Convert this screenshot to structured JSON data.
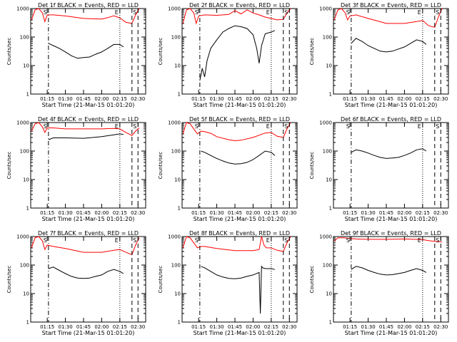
{
  "chart_data": [
    {
      "type": "line",
      "title": "Det 1f BLACK = Events, RED = LLD",
      "xlabel": "Start Time (21-Mar-15 01:01:20)",
      "ylabel": "Counts/sec",
      "yscale": "log",
      "ylim": [
        1,
        1000
      ],
      "x_ticks": [
        "01:15",
        "01:30",
        "01:45",
        "02:00",
        "02:15",
        "02:30"
      ],
      "y_ticks": [
        "1",
        "10",
        "100",
        "1000"
      ],
      "marker_labels": [
        "S",
        "E",
        "S"
      ],
      "series": [
        {
          "color": "#ff0000",
          "x": [
            "01:02",
            "01:05",
            "01:08",
            "01:11",
            "01:13",
            "01:15",
            "01:20",
            "01:30",
            "01:45",
            "02:00",
            "02:05",
            "02:10",
            "02:15",
            "02:20",
            "02:25",
            "02:28",
            "02:31"
          ],
          "values": [
            400,
            900,
            1000,
            700,
            350,
            600,
            600,
            550,
            450,
            430,
            480,
            560,
            470,
            330,
            300,
            600,
            1000
          ]
        },
        {
          "color": "#000000",
          "x": [
            "01:16",
            "01:20",
            "01:25",
            "01:30",
            "01:35",
            "01:40",
            "01:45",
            "01:50",
            "01:55",
            "02:00",
            "02:05",
            "02:10",
            "02:15",
            "02:18"
          ],
          "values": [
            60,
            50,
            40,
            30,
            22,
            18,
            19,
            20,
            25,
            30,
            40,
            55,
            55,
            45
          ]
        }
      ]
    },
    {
      "type": "line",
      "title": "Det 2f BLACK = Events, RED = LLD",
      "xlabel": "Start Time (21-Mar-15 01:01:20)",
      "ylabel": "Counts/sec",
      "yscale": "log",
      "ylim": [
        1,
        1000
      ],
      "x_ticks": [
        "01:15",
        "01:30",
        "01:45",
        "02:00",
        "02:15",
        "02:30"
      ],
      "y_ticks": [
        "1",
        "10",
        "100",
        "1000"
      ],
      "marker_labels": [
        "S",
        "E",
        "S"
      ],
      "series": [
        {
          "color": "#ff0000",
          "x": [
            "01:02",
            "01:05",
            "01:08",
            "01:11",
            "01:13",
            "01:15",
            "01:20",
            "01:30",
            "01:40",
            "01:45",
            "01:50",
            "01:55",
            "02:00",
            "02:05",
            "02:10",
            "02:15",
            "02:20",
            "02:25",
            "02:28",
            "02:31"
          ],
          "values": [
            300,
            900,
            1000,
            700,
            300,
            550,
            600,
            580,
            620,
            850,
            650,
            900,
            700,
            600,
            500,
            450,
            400,
            420,
            700,
            1000
          ]
        },
        {
          "color": "#000000",
          "x": [
            "01:16",
            "01:18",
            "01:20",
            "01:22",
            "01:25",
            "01:30",
            "01:35",
            "01:40",
            "01:45",
            "01:50",
            "01:55",
            "02:00",
            "02:03",
            "02:05",
            "02:07",
            "02:10",
            "02:15",
            "02:18"
          ],
          "values": [
            3,
            8,
            4,
            15,
            40,
            80,
            150,
            200,
            250,
            230,
            200,
            120,
            40,
            12,
            50,
            130,
            150,
            170
          ]
        }
      ]
    },
    {
      "type": "line",
      "title": "Det 3f BLACK = Events, RED = LLD",
      "xlabel": "Start Time (21-Mar-15 01:01:20)",
      "ylabel": "Counts/sec",
      "yscale": "log",
      "ylim": [
        1,
        1000
      ],
      "x_ticks": [
        "01:15",
        "01:30",
        "01:45",
        "02:00",
        "02:15",
        "02:30"
      ],
      "y_ticks": [
        "1",
        "10",
        "100",
        "1000"
      ],
      "marker_labels": [
        "S",
        "E",
        "S"
      ],
      "series": [
        {
          "color": "#ff0000",
          "x": [
            "01:02",
            "01:05",
            "01:08",
            "01:11",
            "01:13",
            "01:15",
            "01:20",
            "01:30",
            "01:45",
            "02:00",
            "02:10",
            "02:15",
            "02:20",
            "02:25",
            "02:28",
            "02:31"
          ],
          "values": [
            400,
            900,
            1000,
            700,
            400,
            550,
            600,
            450,
            300,
            300,
            350,
            380,
            250,
            220,
            500,
            1000
          ]
        },
        {
          "color": "#000000",
          "x": [
            "01:16",
            "01:20",
            "01:25",
            "01:30",
            "01:35",
            "01:40",
            "01:45",
            "01:50",
            "01:55",
            "02:00",
            "02:05",
            "02:10",
            "02:15",
            "02:18"
          ],
          "values": [
            60,
            90,
            70,
            50,
            40,
            32,
            30,
            32,
            38,
            45,
            60,
            80,
            70,
            55
          ]
        }
      ]
    },
    {
      "type": "line",
      "title": "Det 4f BLACK = Events, RED = LLD",
      "xlabel": "Start Time (21-Mar-15 01:01:20)",
      "ylabel": "Counts/sec",
      "yscale": "log",
      "ylim": [
        1,
        1000
      ],
      "x_ticks": [
        "01:15",
        "01:30",
        "01:45",
        "02:00",
        "02:15",
        "02:30"
      ],
      "y_ticks": [
        "1",
        "10",
        "100",
        "1000"
      ],
      "marker_labels": [
        "S",
        "E",
        "S"
      ],
      "series": [
        {
          "color": "#ff0000",
          "x": [
            "01:02",
            "01:05",
            "01:08",
            "01:11",
            "01:13",
            "01:15",
            "01:20",
            "01:30",
            "01:45",
            "02:00",
            "02:10",
            "02:15",
            "02:20",
            "02:25",
            "02:28",
            "02:31"
          ],
          "values": [
            500,
            900,
            1000,
            700,
            450,
            650,
            650,
            600,
            600,
            600,
            620,
            600,
            450,
            350,
            500,
            650
          ]
        },
        {
          "color": "#000000",
          "x": [
            "01:16",
            "01:20",
            "01:30",
            "01:45",
            "02:00",
            "02:10",
            "02:15",
            "02:18"
          ],
          "values": [
            250,
            290,
            290,
            280,
            320,
            370,
            400,
            380
          ]
        }
      ]
    },
    {
      "type": "line",
      "title": "Det 5f BLACK = Events, RED = LLD",
      "xlabel": "Start Time (21-Mar-15 01:01:20)",
      "ylabel": "Counts/sec",
      "yscale": "log",
      "ylim": [
        1,
        1000
      ],
      "x_ticks": [
        "01:15",
        "01:30",
        "01:45",
        "02:00",
        "02:15",
        "02:30"
      ],
      "y_ticks": [
        "1",
        "10",
        "100",
        "1000"
      ],
      "marker_labels": [
        "S",
        "E",
        "S"
      ],
      "series": [
        {
          "color": "#ff0000",
          "x": [
            "01:02",
            "01:05",
            "01:08",
            "01:11",
            "01:14",
            "01:17",
            "01:20",
            "01:25",
            "01:30",
            "01:40",
            "01:45",
            "01:50",
            "02:00",
            "02:10",
            "02:15",
            "02:20",
            "02:25",
            "02:28",
            "02:31"
          ],
          "values": [
            400,
            1000,
            900,
            600,
            400,
            500,
            480,
            420,
            320,
            250,
            230,
            240,
            300,
            430,
            450,
            330,
            300,
            600,
            1000
          ]
        },
        {
          "color": "#000000",
          "x": [
            "01:17",
            "01:20",
            "01:25",
            "01:30",
            "01:35",
            "01:40",
            "01:45",
            "01:50",
            "01:55",
            "02:00",
            "02:05",
            "02:10",
            "02:15",
            "02:18"
          ],
          "values": [
            100,
            90,
            70,
            55,
            45,
            38,
            35,
            36,
            40,
            50,
            70,
            100,
            90,
            70
          ]
        }
      ]
    },
    {
      "type": "line",
      "title": "Det 6f BLACK = Events, RED = LLD",
      "xlabel": "Start Time (21-Mar-15 01:01:20)",
      "ylabel": "Counts/sec",
      "yscale": "log",
      "ylim": [
        1,
        1000
      ],
      "x_ticks": [
        "01:15",
        "01:30",
        "01:45",
        "02:00",
        "02:15",
        "02:30"
      ],
      "y_ticks": [
        "1",
        "10",
        "100",
        "1000"
      ],
      "marker_labels": [
        "S",
        "E",
        "S"
      ],
      "series": [
        {
          "color": "#000000",
          "x": [
            "01:16",
            "01:20",
            "01:25",
            "01:30",
            "01:35",
            "01:40",
            "01:45",
            "01:50",
            "01:55",
            "02:00",
            "02:05",
            "02:10",
            "02:15",
            "02:18"
          ],
          "values": [
            90,
            110,
            100,
            85,
            70,
            60,
            55,
            57,
            60,
            70,
            85,
            110,
            120,
            100
          ]
        }
      ]
    },
    {
      "type": "line",
      "title": "Det 7f BLACK = Events, RED = LLD",
      "xlabel": "Start Time (21-Mar-15 01:01:20)",
      "ylabel": "Counts/sec",
      "yscale": "log",
      "ylim": [
        1,
        1000
      ],
      "x_ticks": [
        "01:15",
        "01:30",
        "01:45",
        "02:00",
        "02:15",
        "02:30"
      ],
      "y_ticks": [
        "1",
        "10",
        "100",
        "1000"
      ],
      "marker_labels": [
        "S",
        "E",
        "S"
      ],
      "series": [
        {
          "color": "#ff0000",
          "x": [
            "01:02",
            "01:05",
            "01:08",
            "01:11",
            "01:13",
            "01:15",
            "01:20",
            "01:30",
            "01:45",
            "02:00",
            "02:10",
            "02:15",
            "02:20",
            "02:25",
            "02:28",
            "02:31"
          ],
          "values": [
            400,
            900,
            1000,
            700,
            350,
            500,
            450,
            380,
            280,
            280,
            330,
            350,
            280,
            230,
            500,
            900
          ]
        },
        {
          "color": "#000000",
          "x": [
            "01:16",
            "01:20",
            "01:25",
            "01:30",
            "01:35",
            "01:40",
            "01:45",
            "01:50",
            "01:55",
            "02:00",
            "02:05",
            "02:10",
            "02:15",
            "02:18"
          ],
          "values": [
            75,
            85,
            65,
            50,
            40,
            35,
            34,
            35,
            40,
            45,
            60,
            70,
            60,
            50
          ]
        }
      ]
    },
    {
      "type": "line",
      "title": "Det 8f BLACK = Events, RED = LLD",
      "xlabel": "Start Time (21-Mar-15 01:01:20)",
      "ylabel": "Counts/sec",
      "yscale": "log",
      "ylim": [
        1,
        1000
      ],
      "x_ticks": [
        "01:15",
        "01:30",
        "01:45",
        "02:00",
        "02:15",
        "02:30"
      ],
      "y_ticks": [
        "1",
        "10",
        "100",
        "1000"
      ],
      "marker_labels": [
        "S",
        "E",
        "S"
      ],
      "series": [
        {
          "color": "#ff0000",
          "x": [
            "01:02",
            "01:05",
            "01:08",
            "01:11",
            "01:14",
            "01:17",
            "01:20",
            "01:30",
            "01:45",
            "02:00",
            "02:05",
            "02:07",
            "02:09",
            "02:11",
            "02:15",
            "02:20",
            "02:25",
            "02:28",
            "02:31"
          ],
          "values": [
            400,
            1000,
            900,
            600,
            400,
            450,
            450,
            380,
            320,
            320,
            350,
            1000,
            500,
            400,
            400,
            330,
            300,
            600,
            1000
          ]
        },
        {
          "color": "#000000",
          "x": [
            "01:17",
            "01:20",
            "01:25",
            "01:30",
            "01:35",
            "01:40",
            "01:45",
            "01:50",
            "01:55",
            "02:00",
            "02:05",
            "02:06",
            "02:07",
            "02:08",
            "02:10",
            "02:15",
            "02:18"
          ],
          "values": [
            90,
            80,
            60,
            45,
            38,
            34,
            33,
            35,
            40,
            45,
            55,
            2,
            90,
            80,
            75,
            75,
            70
          ]
        }
      ]
    },
    {
      "type": "line",
      "title": "Det 9f BLACK = Events, RED = LLD",
      "xlabel": "Start Time (21-Mar-15 01:01:20)",
      "ylabel": "Counts/sec",
      "yscale": "log",
      "ylim": [
        1,
        1000
      ],
      "x_ticks": [
        "01:15",
        "01:30",
        "01:45",
        "02:00",
        "02:15",
        "02:30"
      ],
      "y_ticks": [
        "1",
        "10",
        "100",
        "1000"
      ],
      "marker_labels": [
        "S",
        "E",
        "S"
      ],
      "series": [
        {
          "color": "#ff0000",
          "x": [
            "01:02",
            "01:05",
            "01:10",
            "01:15",
            "01:20",
            "01:30",
            "01:45",
            "02:00",
            "02:15",
            "02:20",
            "02:25",
            "02:31"
          ],
          "values": [
            700,
            900,
            900,
            850,
            820,
            800,
            800,
            820,
            780,
            720,
            680,
            650
          ]
        },
        {
          "color": "#000000",
          "x": [
            "01:16",
            "01:20",
            "01:25",
            "01:30",
            "01:35",
            "01:40",
            "01:45",
            "01:50",
            "01:55",
            "02:00",
            "02:05",
            "02:10",
            "02:15",
            "02:18"
          ],
          "values": [
            70,
            90,
            80,
            65,
            55,
            48,
            45,
            46,
            50,
            55,
            65,
            75,
            65,
            55
          ]
        }
      ]
    }
  ]
}
